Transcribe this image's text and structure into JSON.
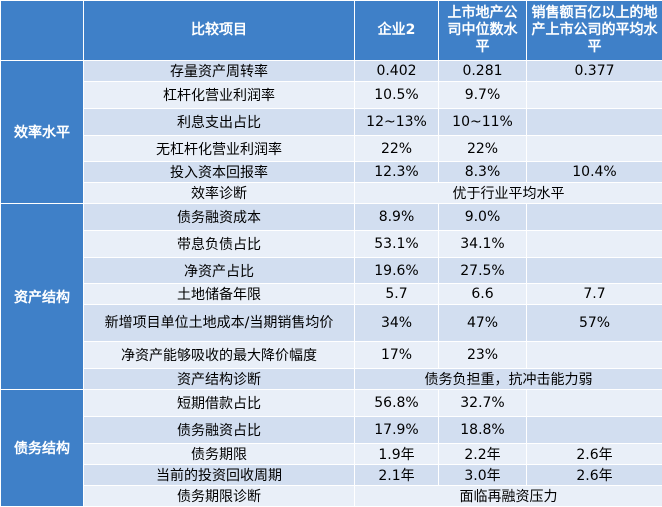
{
  "header": {
    "item": "比较项目",
    "company": "企业2",
    "median": "上市地产公司中位数水平",
    "top_avg": "销售额百亿以上的地产上市公司的平均水平"
  },
  "sections": [
    {
      "name": "效率水平",
      "rows": [
        {
          "item": "存量资产周转率",
          "company": "0.402",
          "median": "0.281",
          "top_avg": "0.377"
        },
        {
          "item": "杠杆化营业利润率",
          "company": "10.5%",
          "median": "9.7%",
          "top_avg": ""
        },
        {
          "item": "利息支出占比",
          "company": "12~13%",
          "median": "10~11%",
          "top_avg": ""
        },
        {
          "item": "无杠杆化营业利润率",
          "company": "22%",
          "median": "22%",
          "top_avg": ""
        },
        {
          "item": "投入资本回报率",
          "company": "12.3%",
          "median": "8.3%",
          "top_avg": "10.4%"
        }
      ],
      "diagnosis_label": "效率诊断",
      "diagnosis": "优于行业平均水平"
    },
    {
      "name": "资产结构",
      "rows": [
        {
          "item": "债务融资成本",
          "company": "8.9%",
          "median": "9.0%",
          "top_avg": ""
        },
        {
          "item": "带息负债占比",
          "company": "53.1%",
          "median": "34.1%",
          "top_avg": ""
        },
        {
          "item": "净资产占比",
          "company": "19.6%",
          "median": "27.5%",
          "top_avg": ""
        },
        {
          "item": "土地储备年限",
          "company": "5.7",
          "median": "6.6",
          "top_avg": "7.7"
        },
        {
          "item": "新增项目单位土地成本/当期销售均价",
          "company": "34%",
          "median": "47%",
          "top_avg": "57%"
        },
        {
          "item": "净资产能够吸收的最大降价幅度",
          "company": "17%",
          "median": "23%",
          "top_avg": ""
        }
      ],
      "diagnosis_label": "资产结构诊断",
      "diagnosis": "债务负担重，抗冲击能力弱"
    },
    {
      "name": "债务结构",
      "rows": [
        {
          "item": "短期借款占比",
          "company": "56.8%",
          "median": "32.7%",
          "top_avg": ""
        },
        {
          "item": "债务融资占比",
          "company": "17.9%",
          "median": "18.8%",
          "top_avg": ""
        },
        {
          "item": "债务期限",
          "company": "1.9年",
          "median": "2.2年",
          "top_avg": "2.6年"
        },
        {
          "item": "当前的投资回收周期",
          "company": "2.1年",
          "median": "3.0年",
          "top_avg": "2.6年"
        }
      ],
      "diagnosis_label": "债务期限诊断",
      "diagnosis": "面临再融资压力"
    }
  ]
}
